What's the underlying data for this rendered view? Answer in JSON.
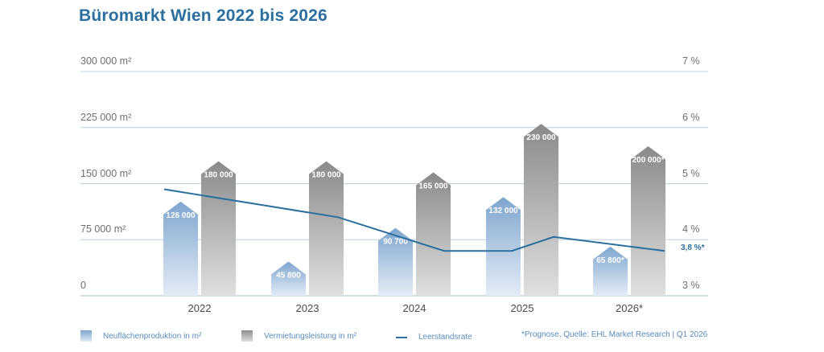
{
  "title": "Büromarkt Wien 2022 bis 2026",
  "colors": {
    "blue_top": "#7fa6cf",
    "blue_bottom": "#e4ecf6",
    "gray_top": "#8a8a8a",
    "gray_bottom": "#e0e0e0",
    "line": "#2a6f9e",
    "grid": "#b9cfe0"
  },
  "legend": {
    "neuflaechen": "Neuflächenproduktion in m²",
    "vermietung": "Vermietungsleistung in m²",
    "leerstand": "Leerstandsrate",
    "note": "*Prognose, Quelle: EHL Market Research | Q1 2026"
  },
  "chart_data": {
    "type": "bar",
    "title": "Büromarkt Wien 2022 bis 2026",
    "categories": [
      "2022",
      "2023",
      "2024",
      "2025",
      "2026*"
    ],
    "y_left": {
      "ticks": [
        "0",
        "75 000 m²",
        "150 000 m²",
        "225 000 m²",
        "300 000 m²"
      ],
      "range": [
        0,
        300000
      ]
    },
    "y_right": {
      "ticks": [
        "3 %",
        "4 %",
        "5 %",
        "6 %",
        "7 %"
      ],
      "range": [
        3,
        7
      ]
    },
    "grid": true,
    "series": [
      {
        "name": "Neuflächenproduktion in m²",
        "values": [
          126000,
          45800,
          90700,
          132000,
          65800
        ],
        "labels": [
          "126 000",
          "45 800",
          "90 700",
          "132 000",
          "65 800*"
        ]
      },
      {
        "name": "Vermietungsleistung in m²",
        "values": [
          180000,
          180000,
          165000,
          230000,
          200000
        ],
        "labels": [
          "180 000",
          "180 000",
          "165 000",
          "230 000",
          "200 000*"
        ]
      },
      {
        "name": "Leerstandsrate",
        "type": "line",
        "values": [
          4.9,
          4.4,
          3.8,
          3.8,
          3.8
        ],
        "end_label": "3,8 %*"
      }
    ]
  }
}
